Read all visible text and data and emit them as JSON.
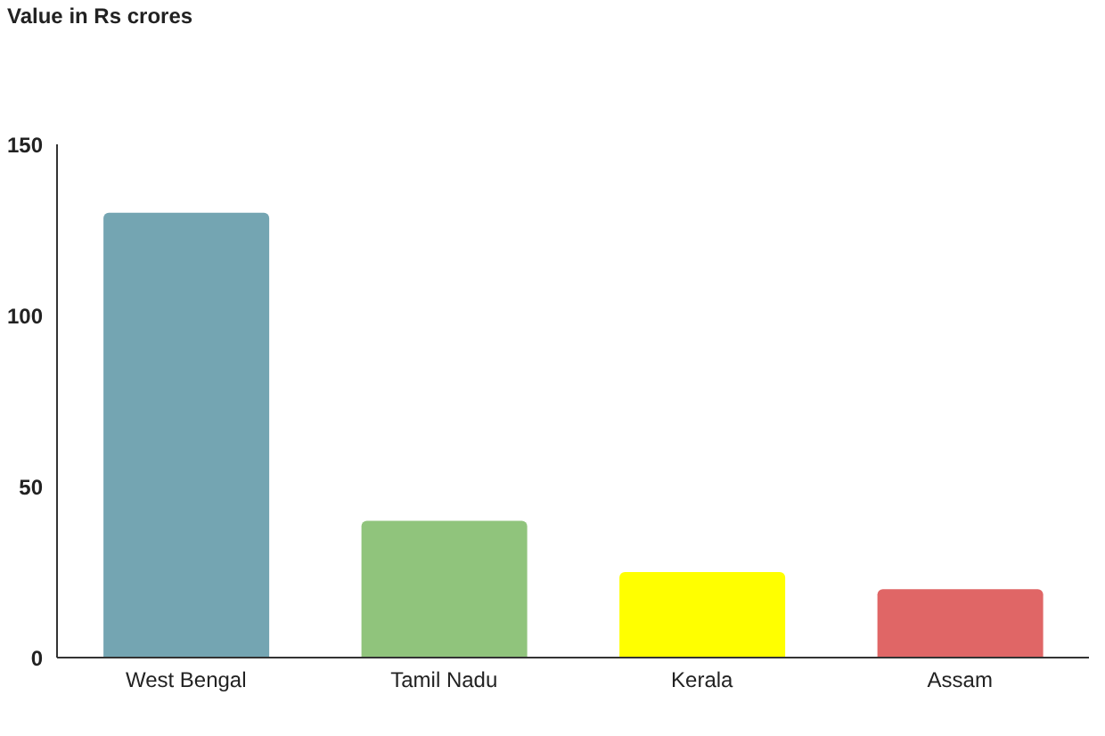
{
  "chart_data": {
    "type": "bar",
    "title": "Value in Rs crores",
    "categories": [
      "West Bengal",
      "Tamil Nadu",
      "Kerala",
      "Assam"
    ],
    "values": [
      130,
      40,
      25,
      20
    ],
    "colors": [
      "#74a5b2",
      "#90c47c",
      "#ffff00",
      "#e06666"
    ],
    "ylim": [
      0,
      150
    ],
    "yticks": [
      0,
      50,
      100,
      150
    ],
    "grid": false,
    "legend": false
  }
}
